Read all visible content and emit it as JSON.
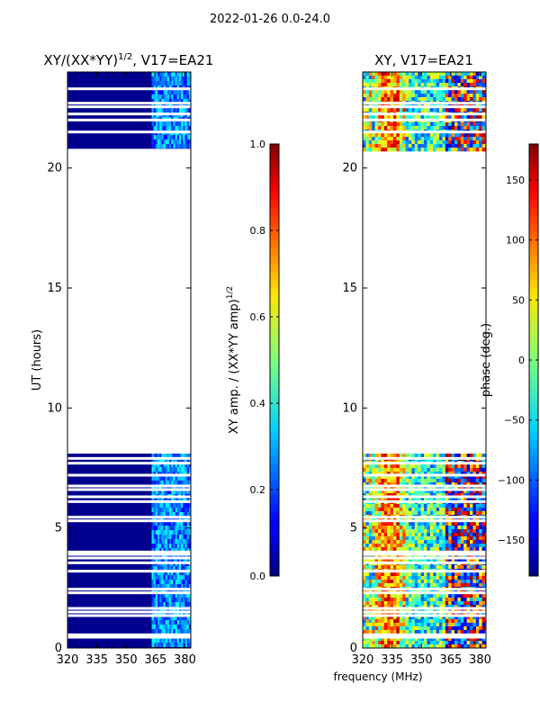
{
  "page": {
    "title": "2022-01-26 0.0-24.0"
  },
  "chart_data": [
    {
      "type": "heatmap",
      "title": "XY/(XX*YY)^{1/2}, V17=EA21",
      "title_main": "XY/(XX*YY)",
      "title_sup": "1/2",
      "title_tail": ", V17=EA21",
      "xlabel": "",
      "ylabel": "UT (hours)",
      "xlim": [
        320,
        383
      ],
      "ylim": [
        0,
        24
      ],
      "xticks": [
        320,
        335,
        350,
        365,
        380
      ],
      "yticks": [
        0,
        5,
        10,
        15,
        20
      ],
      "colorbar": {
        "label": "XY amp. / (XX*YY amp)^{1/2}",
        "label_main": "XY amp. / (XX*YY amp)",
        "label_sup": "1/2",
        "range": [
          0.0,
          1.0
        ],
        "ticks": [
          "0.0",
          "0.2",
          "0.4",
          "0.6",
          "0.8",
          "1.0"
        ],
        "tick_values": [
          0.0,
          0.2,
          0.4,
          0.6,
          0.8,
          1.0
        ]
      },
      "data_blocks_hours": [
        [
          0,
          8.1
        ],
        [
          20.8,
          24
        ]
      ],
      "gap_lines_hours": [
        0.45,
        0.55,
        1.35,
        1.5,
        1.65,
        2.3,
        2.45,
        3.2,
        3.55,
        3.75,
        3.9,
        4.0,
        5.3,
        5.45,
        6.1,
        6.3,
        6.6,
        6.75,
        7.2,
        7.7,
        7.9,
        21.5,
        22.0,
        22.25,
        22.55,
        22.7,
        23.3
      ]
    },
    {
      "type": "heatmap",
      "title": "XY, V17=EA21",
      "xlabel": "frequency (MHz)",
      "ylabel": "",
      "xlim": [
        320,
        383
      ],
      "ylim": [
        0,
        24
      ],
      "xticks": [
        320,
        335,
        350,
        365,
        380
      ],
      "yticks": [
        0,
        5,
        10,
        15,
        20
      ],
      "colorbar": {
        "label": "phase (deg.)",
        "range": [
          -180,
          180
        ],
        "ticks": [
          "−150",
          "−100",
          "−50",
          "0",
          "50",
          "100",
          "150"
        ],
        "tick_values": [
          -150,
          -100,
          -50,
          0,
          50,
          100,
          150
        ]
      },
      "data_blocks_hours": [
        [
          0,
          8.1
        ],
        [
          20.8,
          24
        ]
      ],
      "gap_lines_hours": [
        0.45,
        0.55,
        1.35,
        1.5,
        1.65,
        2.3,
        2.45,
        3.2,
        3.55,
        3.75,
        3.9,
        4.0,
        5.3,
        5.45,
        6.1,
        6.3,
        6.6,
        6.75,
        7.2,
        7.7,
        7.9,
        21.5,
        22.0,
        22.25,
        22.55,
        22.7,
        23.3
      ]
    }
  ]
}
